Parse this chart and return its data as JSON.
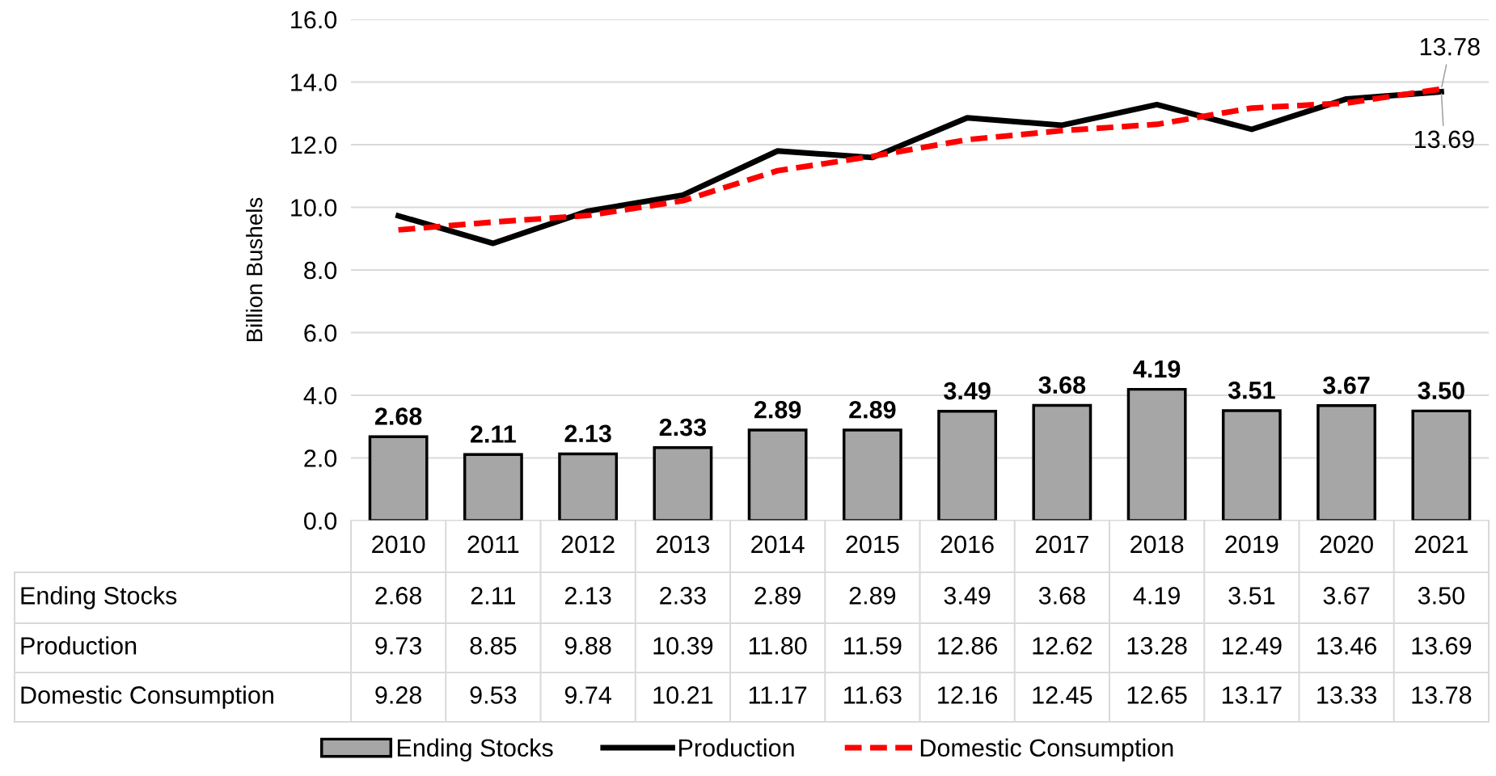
{
  "chart_data": {
    "type": "bar",
    "ylabel": "Billion Bushels",
    "categories": [
      "2010",
      "2011",
      "2012",
      "2013",
      "2014",
      "2015",
      "2016",
      "2017",
      "2018",
      "2019",
      "2020",
      "2021"
    ],
    "series": [
      {
        "name": "Ending Stocks",
        "color": "#a6a6a6",
        "values": [
          2.68,
          2.11,
          2.13,
          2.33,
          2.89,
          2.89,
          3.49,
          3.68,
          4.19,
          3.51,
          3.67,
          3.5
        ],
        "value_labels": [
          "2.68",
          "2.11",
          "2.13",
          "2.33",
          "2.89",
          "2.89",
          "3.49",
          "3.68",
          "4.19",
          "3.51",
          "3.67",
          "3.50"
        ]
      },
      {
        "name": "Production",
        "type": "line",
        "color": "#000000",
        "line_style": "solid",
        "values": [
          9.73,
          8.85,
          9.88,
          10.39,
          11.8,
          11.59,
          12.86,
          12.62,
          13.28,
          12.49,
          13.46,
          13.69
        ],
        "value_labels": [
          "9.73",
          "8.85",
          "9.88",
          "10.39",
          "11.80",
          "11.59",
          "12.86",
          "12.62",
          "13.28",
          "12.49",
          "13.46",
          "13.69"
        ]
      },
      {
        "name": "Domestic Consumption",
        "type": "line",
        "color": "#ff0000",
        "line_style": "dashed",
        "values": [
          9.28,
          9.53,
          9.74,
          10.21,
          11.17,
          11.63,
          12.16,
          12.45,
          12.65,
          13.17,
          13.33,
          13.78
        ],
        "value_labels": [
          "9.28",
          "9.53",
          "9.74",
          "10.21",
          "11.17",
          "11.63",
          "12.16",
          "12.45",
          "12.65",
          "13.17",
          "13.33",
          "13.78"
        ]
      }
    ],
    "ylim": [
      0,
      16
    ],
    "yticks": [
      {
        "value": 0,
        "label": "0.0"
      },
      {
        "value": 2,
        "label": "2.0"
      },
      {
        "value": 4,
        "label": "4.0"
      },
      {
        "value": 6,
        "label": "6.0"
      },
      {
        "value": 8,
        "label": "8.0"
      },
      {
        "value": 10,
        "label": "10.0"
      },
      {
        "value": 12,
        "label": "12.0"
      },
      {
        "value": 14,
        "label": "14.0"
      },
      {
        "value": 16,
        "label": "16.0"
      }
    ],
    "grid": "y",
    "legend": "bottom",
    "annotations": [
      {
        "text": "13.78",
        "x": "2021",
        "y": 13.78
      },
      {
        "text": "13.69",
        "x": "2021",
        "y": 13.69
      }
    ]
  }
}
